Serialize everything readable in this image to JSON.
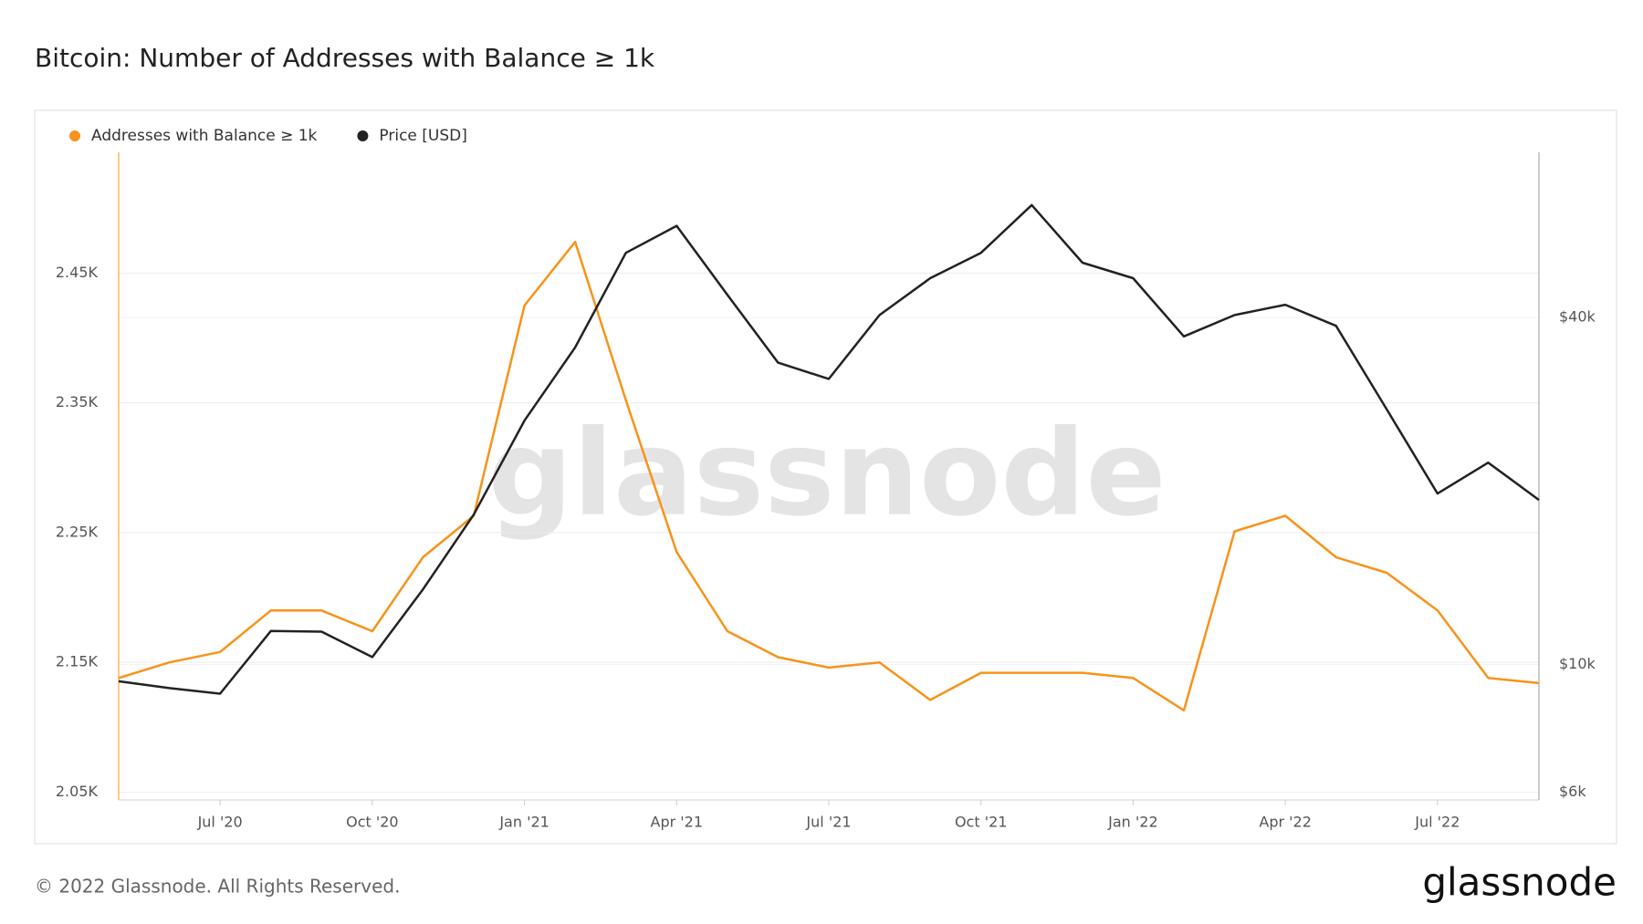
{
  "chart_data": {
    "type": "line",
    "title": "Bitcoin: Number of Addresses with Balance ≥ 1k",
    "watermark": "glassnode",
    "footer": "© 2022 Glassnode. All Rights Reserved.",
    "logo": "glassnode",
    "x": [
      "2020-05",
      "2020-06",
      "2020-07",
      "2020-08",
      "2020-09",
      "2020-10",
      "2020-11",
      "2020-12",
      "2021-01",
      "2021-02",
      "2021-03",
      "2021-04",
      "2021-05",
      "2021-06",
      "2021-07",
      "2021-08",
      "2021-09",
      "2021-10",
      "2021-11",
      "2021-12",
      "2022-01",
      "2022-02",
      "2022-03",
      "2022-04",
      "2022-05",
      "2022-06",
      "2022-07",
      "2022-08",
      "2022-09"
    ],
    "xlim": [
      "2020-05",
      "2022-09"
    ],
    "xticks": [
      {
        "value": "2020-07",
        "label": "Jul '20"
      },
      {
        "value": "2020-10",
        "label": "Oct '20"
      },
      {
        "value": "2021-01",
        "label": "Jan '21"
      },
      {
        "value": "2021-04",
        "label": "Apr '21"
      },
      {
        "value": "2021-07",
        "label": "Jul '21"
      },
      {
        "value": "2021-10",
        "label": "Oct '21"
      },
      {
        "value": "2022-01",
        "label": "Jan '22"
      },
      {
        "value": "2022-04",
        "label": "Apr '22"
      },
      {
        "value": "2022-07",
        "label": "Jul '22"
      }
    ],
    "ylim": [
      2044,
      2543
    ],
    "yticks": [
      {
        "value": 2050,
        "label": "2.05K"
      },
      {
        "value": 2150,
        "label": "2.15K"
      },
      {
        "value": 2250,
        "label": "2.25K"
      },
      {
        "value": 2350,
        "label": "2.35K"
      },
      {
        "value": 2450,
        "label": "2.45K"
      }
    ],
    "y2lim": [
      5820,
      77400
    ],
    "y2scale": "log",
    "y2ticks": [
      {
        "value": 6000,
        "label": "$6k"
      },
      {
        "value": 10000,
        "label": "$10k"
      },
      {
        "value": 40000,
        "label": "$40k"
      }
    ],
    "grid": true,
    "legend": "top-left",
    "series": [
      {
        "name": "Addresses with Balance ≥ 1k",
        "color": "#f7931a",
        "values": [
          2138,
          2150,
          2158,
          2190,
          2190,
          2174,
          2231,
          2263,
          2425,
          2474,
          2352,
          2235,
          2174,
          2154,
          2146,
          2150,
          2121,
          2142,
          2142,
          2142,
          2138,
          2113,
          2251,
          2263,
          2231,
          2219,
          2190,
          2138,
          2134
        ]
      },
      {
        "name": "Price [USD]",
        "color": "#222222",
        "axis": "y2",
        "values": [
          9350,
          9100,
          8900,
          11430,
          11400,
          10300,
          13500,
          18200,
          26500,
          35500,
          51800,
          57700,
          43800,
          33400,
          31300,
          40400,
          46800,
          51800,
          62700,
          49800,
          46800,
          37100,
          40400,
          42100,
          38700,
          27700,
          19800,
          22400,
          19300
        ]
      }
    ]
  }
}
